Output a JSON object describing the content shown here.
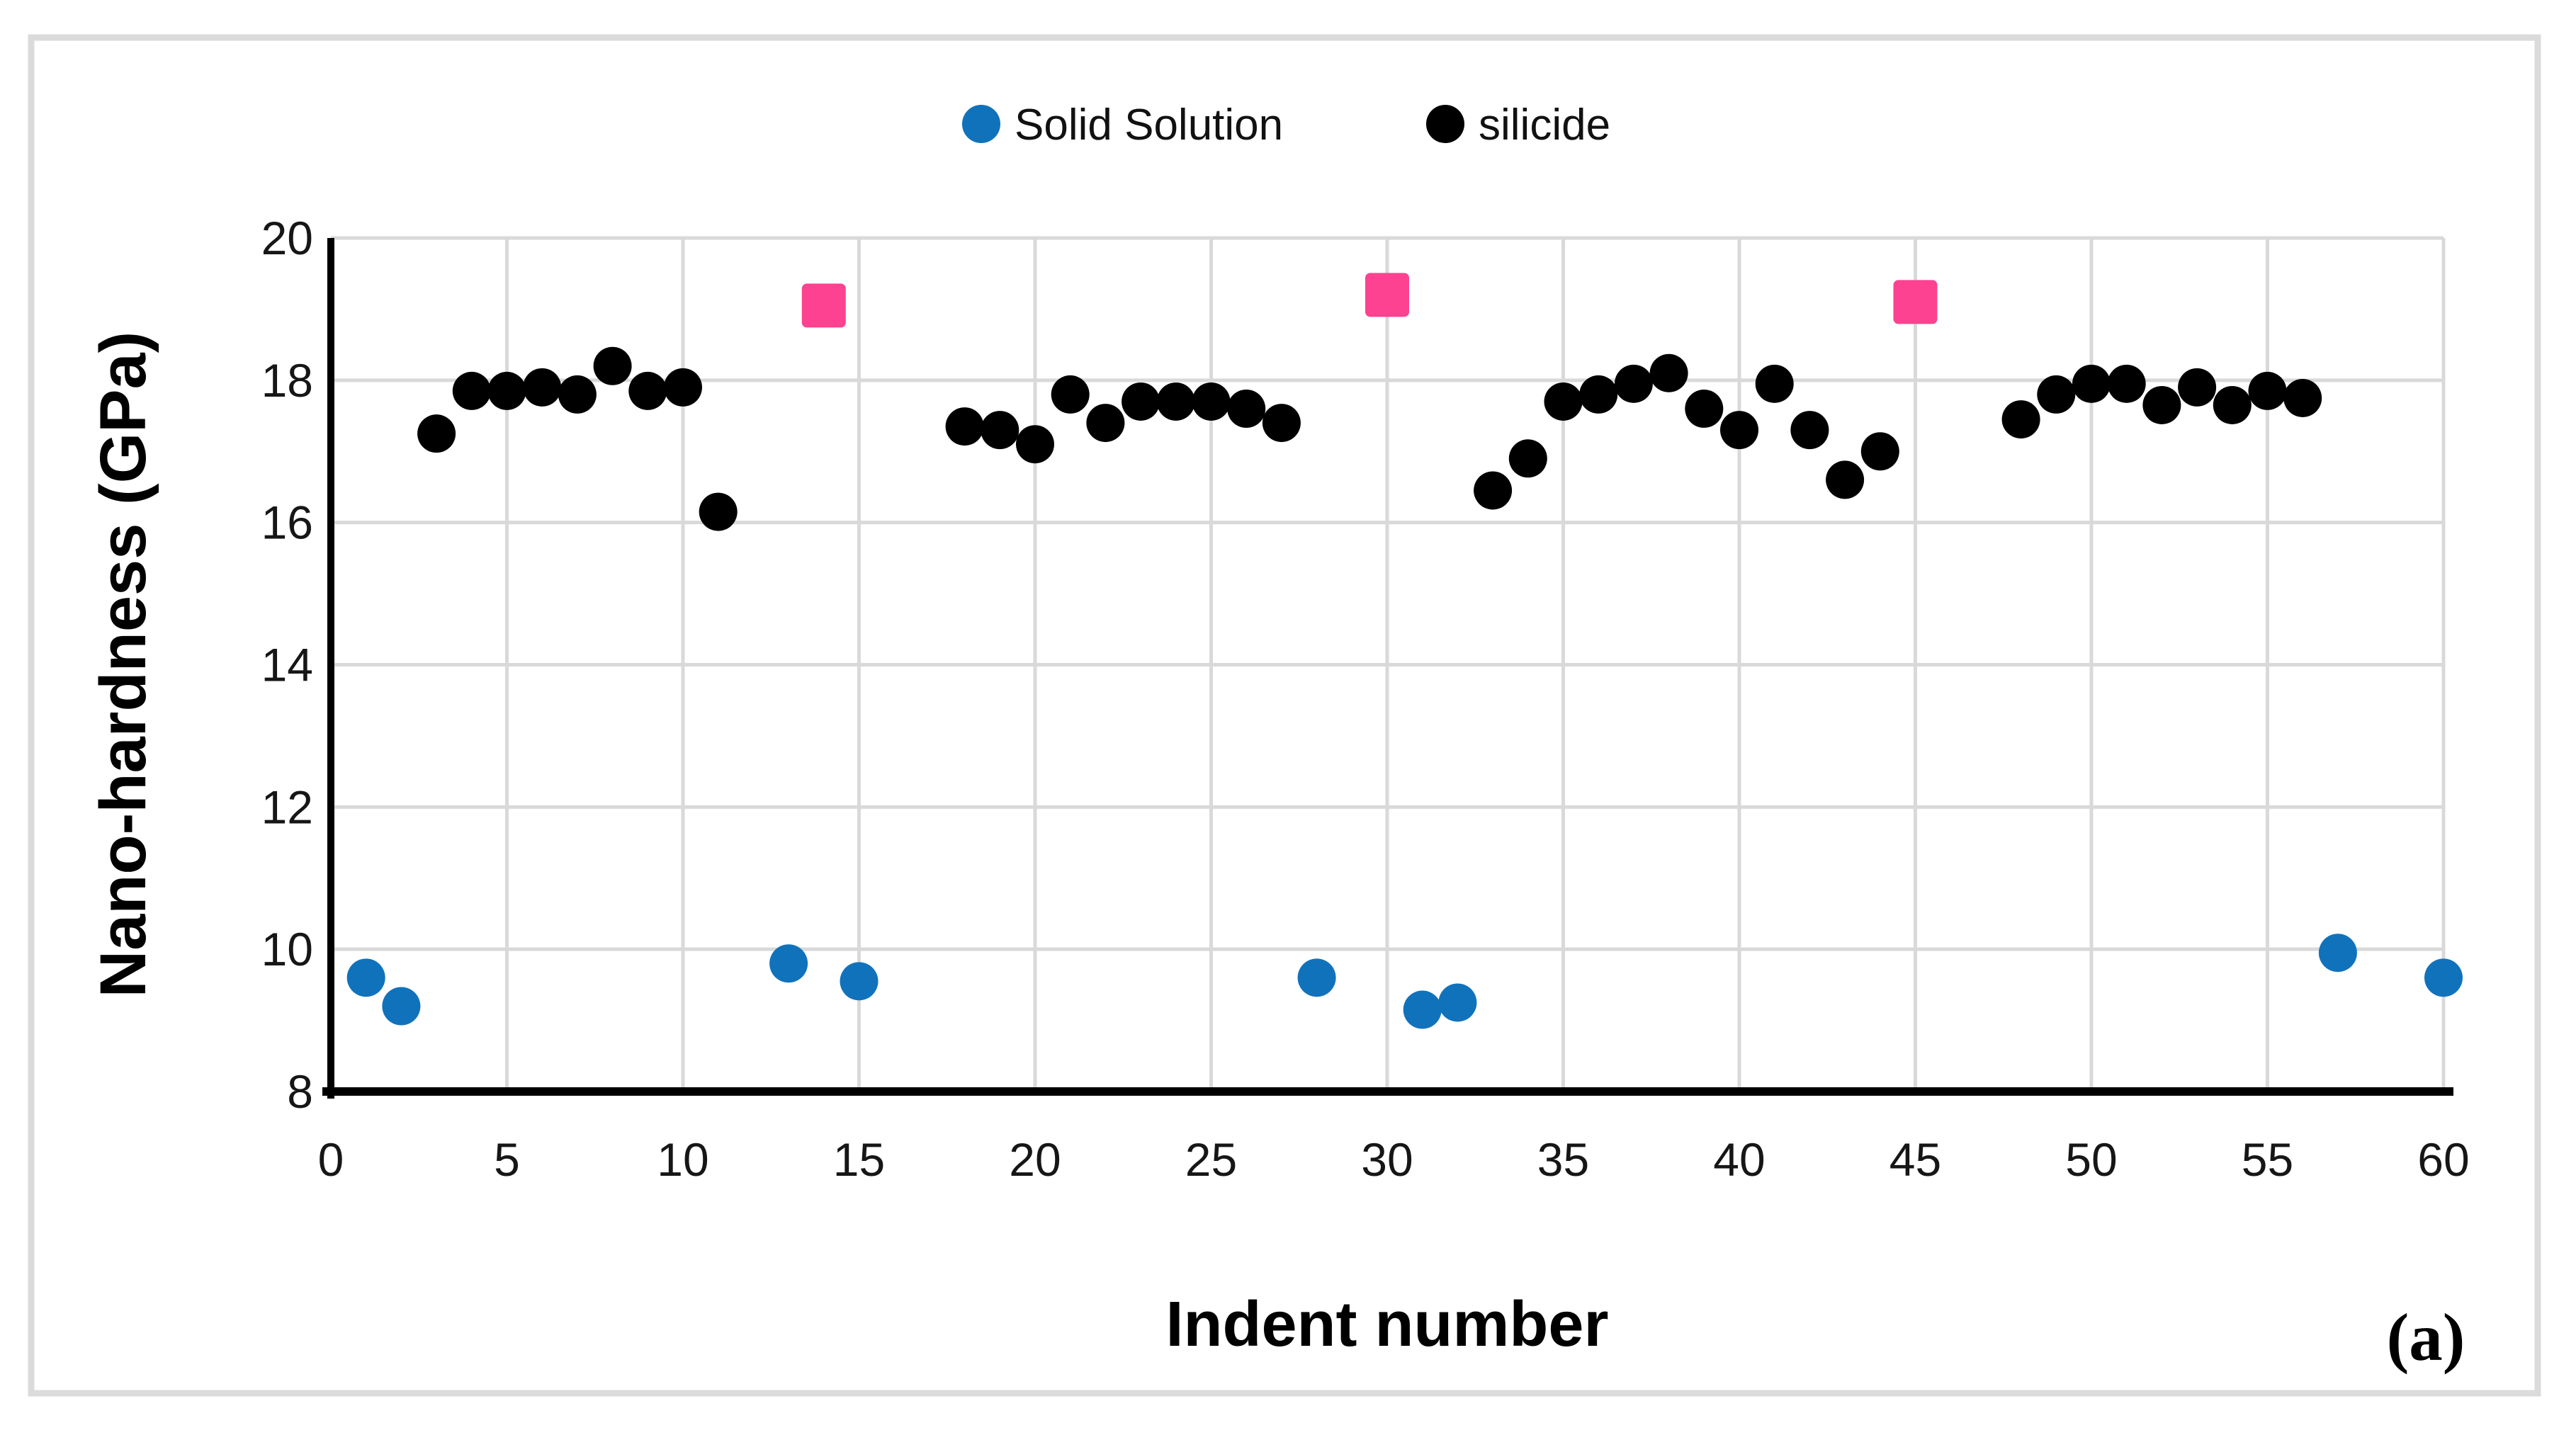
{
  "figure": {
    "annotation": "(a)"
  },
  "colors": {
    "grid": "#D9D9D9",
    "frame": "#DBDBDB",
    "axis": "#000000",
    "solid_solution": "#1172BC",
    "silicide": "#000000",
    "pink_square": "#FC4290"
  },
  "chart_data": {
    "type": "scatter",
    "title": "",
    "xlabel": "Indent number",
    "ylabel": "Nano-hardness (GPa)",
    "xlim": [
      0,
      60
    ],
    "ylim": [
      8,
      20
    ],
    "xticks": [
      0,
      5,
      10,
      15,
      20,
      25,
      30,
      35,
      40,
      45,
      50,
      55,
      60
    ],
    "yticks": [
      8,
      10,
      12,
      14,
      16,
      18,
      20
    ],
    "grid": true,
    "legend_position": "top-center",
    "series": [
      {
        "name": "Solid Solution",
        "marker": "circle",
        "color": "#1172BC",
        "in_legend": true,
        "points": [
          [
            1,
            9.6
          ],
          [
            2,
            9.2
          ],
          [
            13,
            9.8
          ],
          [
            15,
            9.55
          ],
          [
            28,
            9.6
          ],
          [
            31,
            9.15
          ],
          [
            32,
            9.25
          ],
          [
            57,
            9.95
          ],
          [
            60,
            9.6
          ]
        ]
      },
      {
        "name": "silicide",
        "marker": "circle",
        "color": "#000000",
        "in_legend": true,
        "points": [
          [
            3,
            17.25
          ],
          [
            4,
            17.85
          ],
          [
            5,
            17.85
          ],
          [
            6,
            17.9
          ],
          [
            7,
            17.8
          ],
          [
            8,
            18.2
          ],
          [
            9,
            17.85
          ],
          [
            10,
            17.9
          ],
          [
            11,
            16.15
          ],
          [
            18,
            17.35
          ],
          [
            19,
            17.3
          ],
          [
            20,
            17.1
          ],
          [
            21,
            17.8
          ],
          [
            22,
            17.4
          ],
          [
            23,
            17.7
          ],
          [
            24,
            17.7
          ],
          [
            25,
            17.7
          ],
          [
            26,
            17.6
          ],
          [
            27,
            17.4
          ],
          [
            33,
            16.45
          ],
          [
            34,
            16.9
          ],
          [
            35,
            17.7
          ],
          [
            36,
            17.8
          ],
          [
            37,
            17.95
          ],
          [
            38,
            18.1
          ],
          [
            39,
            17.6
          ],
          [
            40,
            17.3
          ],
          [
            41,
            17.95
          ],
          [
            42,
            17.3
          ],
          [
            43,
            16.6
          ],
          [
            44,
            17.0
          ],
          [
            48,
            17.45
          ],
          [
            49,
            17.8
          ],
          [
            50,
            17.95
          ],
          [
            51,
            17.95
          ],
          [
            52,
            17.65
          ],
          [
            53,
            17.9
          ],
          [
            54,
            17.65
          ],
          [
            55,
            17.85
          ],
          [
            56,
            17.75
          ]
        ]
      },
      {
        "name": "",
        "marker": "square",
        "color": "#FC4290",
        "in_legend": false,
        "points": [
          [
            14,
            19.05
          ],
          [
            30,
            19.2
          ],
          [
            45,
            19.1
          ]
        ]
      }
    ]
  }
}
